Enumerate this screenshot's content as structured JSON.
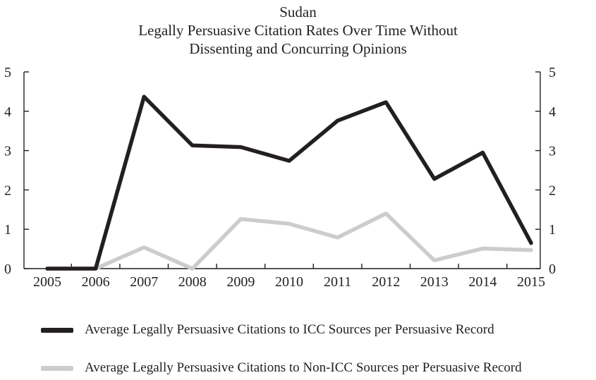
{
  "chart_data": {
    "type": "line",
    "title_lines": [
      "Sudan",
      "Legally Persuasive Citation Rates Over Time Without",
      "Dissenting and Concurring Opinions"
    ],
    "categories": [
      "2005",
      "2006",
      "2007",
      "2008",
      "2009",
      "2010",
      "2011",
      "2012",
      "2013",
      "2014",
      "2015"
    ],
    "y_ticks": [
      "0",
      "1",
      "2",
      "3",
      "4",
      "5"
    ],
    "ylim": [
      0,
      5
    ],
    "y_axes": "left-and-right",
    "grid": false,
    "legend_position": "bottom",
    "series": [
      {
        "name": "Average Legally Persuasive Citations to ICC Sources per Persuasive Record",
        "color": "#231f20",
        "values": [
          0,
          0,
          4.37,
          3.13,
          3.09,
          2.74,
          3.76,
          4.23,
          2.28,
          2.95,
          0.65
        ]
      },
      {
        "name": "Average Legally Persuasive Citations to Non-ICC Sources per Persuasive Record",
        "color": "#cccccc",
        "values": [
          0,
          0,
          0.54,
          0,
          1.26,
          1.14,
          0.79,
          1.4,
          0.21,
          0.51,
          0.47
        ]
      }
    ]
  }
}
